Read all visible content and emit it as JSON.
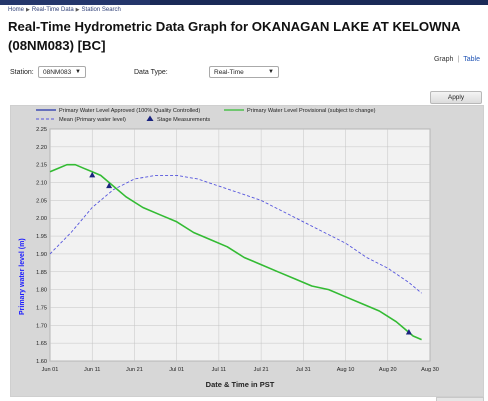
{
  "breadcrumb": {
    "items": [
      "Home",
      "Real-Time Data",
      "Station Search"
    ]
  },
  "page_title": "Real-Time Hydrometric Data Graph for OKANAGAN LAKE AT KELOWNA (08NM083) [BC]",
  "view_links": {
    "graph": "Graph",
    "table": "Table"
  },
  "form": {
    "station_label": "Station:",
    "station_value": "08NM083",
    "data_type_label": "Data Type:",
    "data_type_value": "Real-Time",
    "apply_label": "Apply"
  },
  "colors": {
    "approved": "#2233aa",
    "provisional": "#33bb33",
    "mean": "#5555dd",
    "stage": "#1a237e",
    "plot_bg": "#f2f2f2"
  },
  "chart_data": {
    "type": "line",
    "xlabel": "Date & Time in PST",
    "ylabel": "Primary water level (m)",
    "ylim": [
      1.6,
      2.25
    ],
    "yticks": [
      "1.60",
      "1.65",
      "1.70",
      "1.75",
      "1.80",
      "1.85",
      "1.90",
      "1.95",
      "2.00",
      "2.05",
      "2.10",
      "2.15",
      "2.20",
      "2.25"
    ],
    "xlim": [
      "Jun 01",
      "Aug 30"
    ],
    "xticks": [
      "Jun 01",
      "Jun 11",
      "Jun 21",
      "Jul 01",
      "Jul 11",
      "Jul 21",
      "Jul 31",
      "Aug 10",
      "Aug 20",
      "Aug 30"
    ],
    "grid": true,
    "legend": {
      "items": [
        {
          "label": "Primary Water Level Approved (100% Quality Controlled)",
          "style": "solid",
          "color_key": "approved"
        },
        {
          "label": "Primary Water Level Provisional (subject to change)",
          "style": "solid",
          "color_key": "provisional"
        },
        {
          "label": "Mean (Primary water level)",
          "style": "dashed",
          "color_key": "mean"
        },
        {
          "label": "Stage Measurements",
          "style": "triangle",
          "color_key": "stage"
        }
      ]
    },
    "series": [
      {
        "name": "Primary Water Level Provisional (subject to change)",
        "x": [
          0,
          2,
          4,
          6,
          8,
          10,
          12,
          14,
          18,
          22,
          26,
          30,
          34,
          38,
          42,
          46,
          50,
          54,
          58,
          62,
          66,
          70,
          74,
          78,
          82,
          84,
          86,
          88
        ],
        "y": [
          2.13,
          2.14,
          2.15,
          2.15,
          2.14,
          2.13,
          2.12,
          2.1,
          2.06,
          2.03,
          2.01,
          1.99,
          1.96,
          1.94,
          1.92,
          1.89,
          1.87,
          1.85,
          1.83,
          1.81,
          1.8,
          1.78,
          1.76,
          1.74,
          1.71,
          1.69,
          1.67,
          1.66
        ]
      },
      {
        "name": "Mean (Primary water level)",
        "x": [
          0,
          5,
          10,
          15,
          20,
          25,
          30,
          35,
          40,
          45,
          50,
          55,
          60,
          65,
          70,
          75,
          80,
          85,
          88
        ],
        "y": [
          1.9,
          1.96,
          2.03,
          2.08,
          2.11,
          2.12,
          2.12,
          2.11,
          2.09,
          2.07,
          2.05,
          2.02,
          1.99,
          1.96,
          1.93,
          1.89,
          1.86,
          1.82,
          1.79
        ]
      }
    ],
    "stage_measurements": {
      "x": [
        10,
        14,
        85
      ],
      "y": [
        2.12,
        2.09,
        1.68
      ]
    }
  }
}
